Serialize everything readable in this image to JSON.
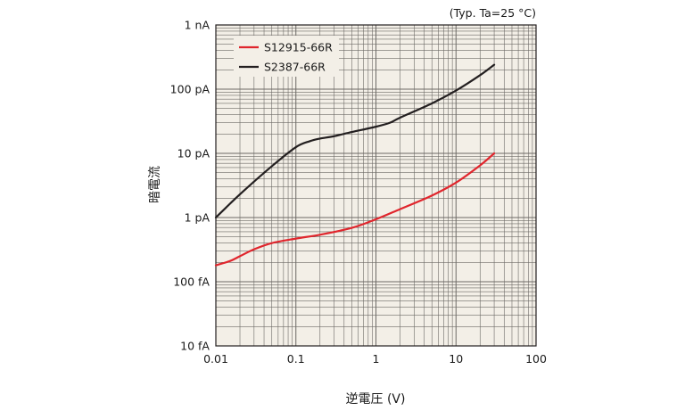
{
  "chart_data": {
    "type": "line",
    "title": "",
    "condition_note": "(Typ. Ta=25 °C)",
    "xlabel": "逆電圧 (V)",
    "ylabel": "暗電流",
    "x_scale": "log",
    "y_scale": "log",
    "xlim": [
      0.01,
      100
    ],
    "ylim": [
      1e-14,
      1e-09
    ],
    "x_ticks": [
      {
        "value": 0.01,
        "label": "0.01"
      },
      {
        "value": 0.1,
        "label": "0.1"
      },
      {
        "value": 1,
        "label": "1"
      },
      {
        "value": 10,
        "label": "10"
      },
      {
        "value": 100,
        "label": "100"
      }
    ],
    "y_ticks": [
      {
        "value": 1e-14,
        "label": "10 fA"
      },
      {
        "value": 1e-13,
        "label": "100 fA"
      },
      {
        "value": 1e-12,
        "label": "1 pA"
      },
      {
        "value": 1e-11,
        "label": "10 pA"
      },
      {
        "value": 1e-10,
        "label": "100 pA"
      },
      {
        "value": 1e-09,
        "label": "1 nA"
      }
    ],
    "grid": true,
    "legend_position": "top-left",
    "series": [
      {
        "name": "S12915-66R",
        "color": "#e0262d",
        "x": [
          0.01,
          0.015,
          0.02,
          0.03,
          0.05,
          0.1,
          0.2,
          0.5,
          1,
          2,
          5,
          10,
          20,
          30
        ],
        "y": [
          1.8e-13,
          2.1e-13,
          2.5e-13,
          3.2e-13,
          4e-13,
          4.7e-13,
          5.4e-13,
          6.9e-13,
          9.4e-13,
          1.35e-12,
          2.2e-12,
          3.5e-12,
          6.5e-12,
          1e-11
        ]
      },
      {
        "name": "S2387-66R",
        "color": "#231f20",
        "x": [
          0.01,
          0.02,
          0.05,
          0.1,
          0.15,
          0.2,
          0.3,
          0.5,
          1,
          1.5,
          2,
          5,
          10,
          20,
          30
        ],
        "y": [
          1e-12,
          2.3e-12,
          6.3e-12,
          1.25e-11,
          1.55e-11,
          1.7e-11,
          1.85e-11,
          2.15e-11,
          2.6e-11,
          3e-11,
          3.6e-11,
          6e-11,
          9.5e-11,
          1.65e-10,
          2.4e-10
        ]
      }
    ]
  }
}
